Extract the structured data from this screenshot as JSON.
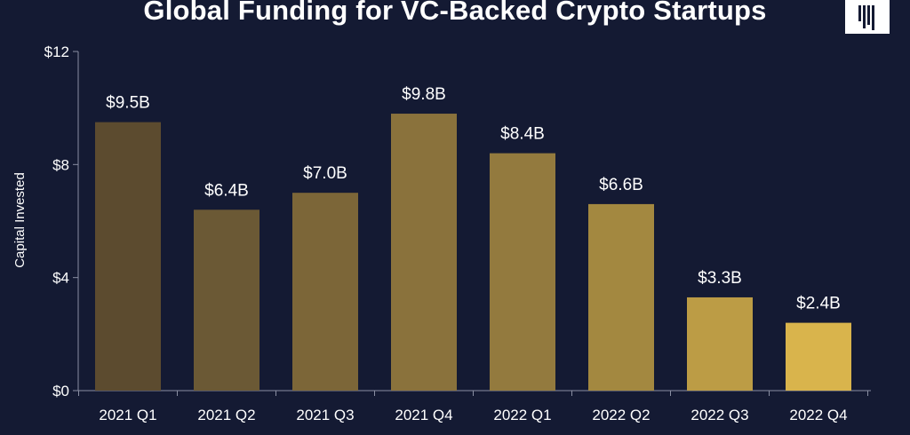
{
  "chart_data": {
    "type": "bar",
    "title": "Global Funding for VC-Backed Crypto Startups",
    "xlabel": "",
    "ylabel": "Capital Invested",
    "ylim": [
      0,
      12
    ],
    "yticks": [
      0,
      4,
      8,
      12
    ],
    "ytick_labels": [
      "$0",
      "$4",
      "$8",
      "$12"
    ],
    "categories": [
      "2021 Q1",
      "2021 Q2",
      "2021 Q3",
      "2021 Q4",
      "2022 Q1",
      "2022 Q2",
      "2022 Q3",
      "2022 Q4"
    ],
    "values": [
      9.5,
      6.4,
      7.0,
      9.8,
      8.4,
      6.6,
      3.3,
      2.4
    ],
    "data_labels": [
      "$9.5B",
      "$6.4B",
      "$7.0B",
      "$9.8B",
      "$8.4B",
      "$6.6B",
      "$3.3B",
      "$2.4B"
    ],
    "bar_colors": [
      "#5c4b2f",
      "#6b5935",
      "#7c6638",
      "#8a723c",
      "#937a3e",
      "#a38840",
      "#bc9c45",
      "#d9b44c"
    ],
    "grid": false,
    "legend": "none"
  },
  "colors": {
    "background": "#141a33",
    "text": "#ffffff",
    "axis": "#8a8fa3"
  },
  "logo": {
    "name": "pitchbook-logo-icon"
  }
}
